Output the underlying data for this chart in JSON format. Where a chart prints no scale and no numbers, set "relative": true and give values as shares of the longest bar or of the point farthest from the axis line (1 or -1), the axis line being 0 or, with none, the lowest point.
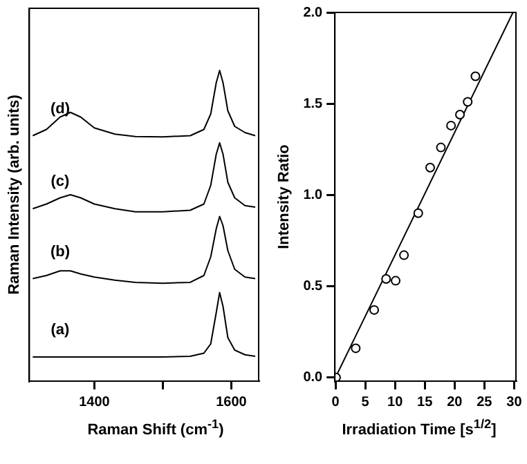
{
  "chart_data": [
    {
      "type": "line",
      "xlabel": "Raman Shift (cm$^{-1}$)",
      "ylabel": "Raman Intensity (arb. units)",
      "relative": true,
      "marker": "none",
      "tick_labels": "x",
      "xlim": [
        1305,
        1640
      ],
      "xticks": [
        1400,
        {
          "value": 1500,
          "label": null
        },
        1600
      ],
      "x": [
        1310,
        1330,
        1350,
        1365,
        1380,
        1400,
        1430,
        1460,
        1500,
        1540,
        1560,
        1570,
        1578,
        1583,
        1588,
        1595,
        1605,
        1620,
        1635
      ],
      "series": [
        {
          "name": "(d)",
          "color": "#000000",
          "values": [
            0.79,
            0.81,
            0.85,
            0.865,
            0.85,
            0.815,
            0.795,
            0.787,
            0.786,
            0.79,
            0.81,
            0.86,
            0.96,
            1.0,
            0.96,
            0.87,
            0.82,
            0.8,
            0.79
          ]
        },
        {
          "name": "(c)",
          "color": "#000000",
          "values": [
            0.555,
            0.57,
            0.59,
            0.6,
            0.59,
            0.57,
            0.555,
            0.545,
            0.545,
            0.55,
            0.57,
            0.63,
            0.73,
            0.767,
            0.73,
            0.64,
            0.59,
            0.565,
            0.56
          ]
        },
        {
          "name": "(b)",
          "color": "#000000",
          "values": [
            0.33,
            0.34,
            0.355,
            0.355,
            0.345,
            0.335,
            0.325,
            0.318,
            0.315,
            0.318,
            0.34,
            0.4,
            0.49,
            0.53,
            0.5,
            0.42,
            0.36,
            0.335,
            0.33
          ]
        },
        {
          "name": "(a)",
          "color": "#000000",
          "values": [
            0.078,
            0.078,
            0.078,
            0.078,
            0.078,
            0.078,
            0.078,
            0.078,
            0.078,
            0.08,
            0.09,
            0.12,
            0.22,
            0.285,
            0.24,
            0.14,
            0.1,
            0.085,
            0.08
          ]
        }
      ]
    },
    {
      "type": "scatter",
      "xlabel": "Irradiation Time [s$^{1/2}$]",
      "ylabel": "Intensity Ratio",
      "xlim": [
        -0.1,
        30.3
      ],
      "xticks": [
        0,
        5,
        10,
        15,
        20,
        25,
        30
      ],
      "ylim": [
        -0.02,
        2.0
      ],
      "yticks": [
        {
          "value": 0,
          "label": "0.0"
        },
        {
          "value": 0.5,
          "label": "0.5"
        },
        {
          "value": 1,
          "label": "1.0"
        },
        {
          "value": 1.5,
          "label": "1.5"
        },
        {
          "value": 2,
          "label": "2.0"
        }
      ],
      "series": [
        {
          "type": "scatter",
          "color": "#000000",
          "marker": "circle",
          "x": [
            0.1,
            3.4,
            6.5,
            8.5,
            10.1,
            11.5,
            13.9,
            15.9,
            17.7,
            19.4,
            20.9,
            22.2,
            23.5
          ],
          "values": [
            0.0,
            0.16,
            0.37,
            0.54,
            0.53,
            0.67,
            0.9,
            1.15,
            1.26,
            1.38,
            1.44,
            1.51,
            1.65
          ]
        },
        {
          "type": "line",
          "color": "#000000",
          "marker": "none",
          "x": [
            0,
            29.8
          ],
          "values": [
            0,
            2.0
          ]
        }
      ]
    }
  ]
}
